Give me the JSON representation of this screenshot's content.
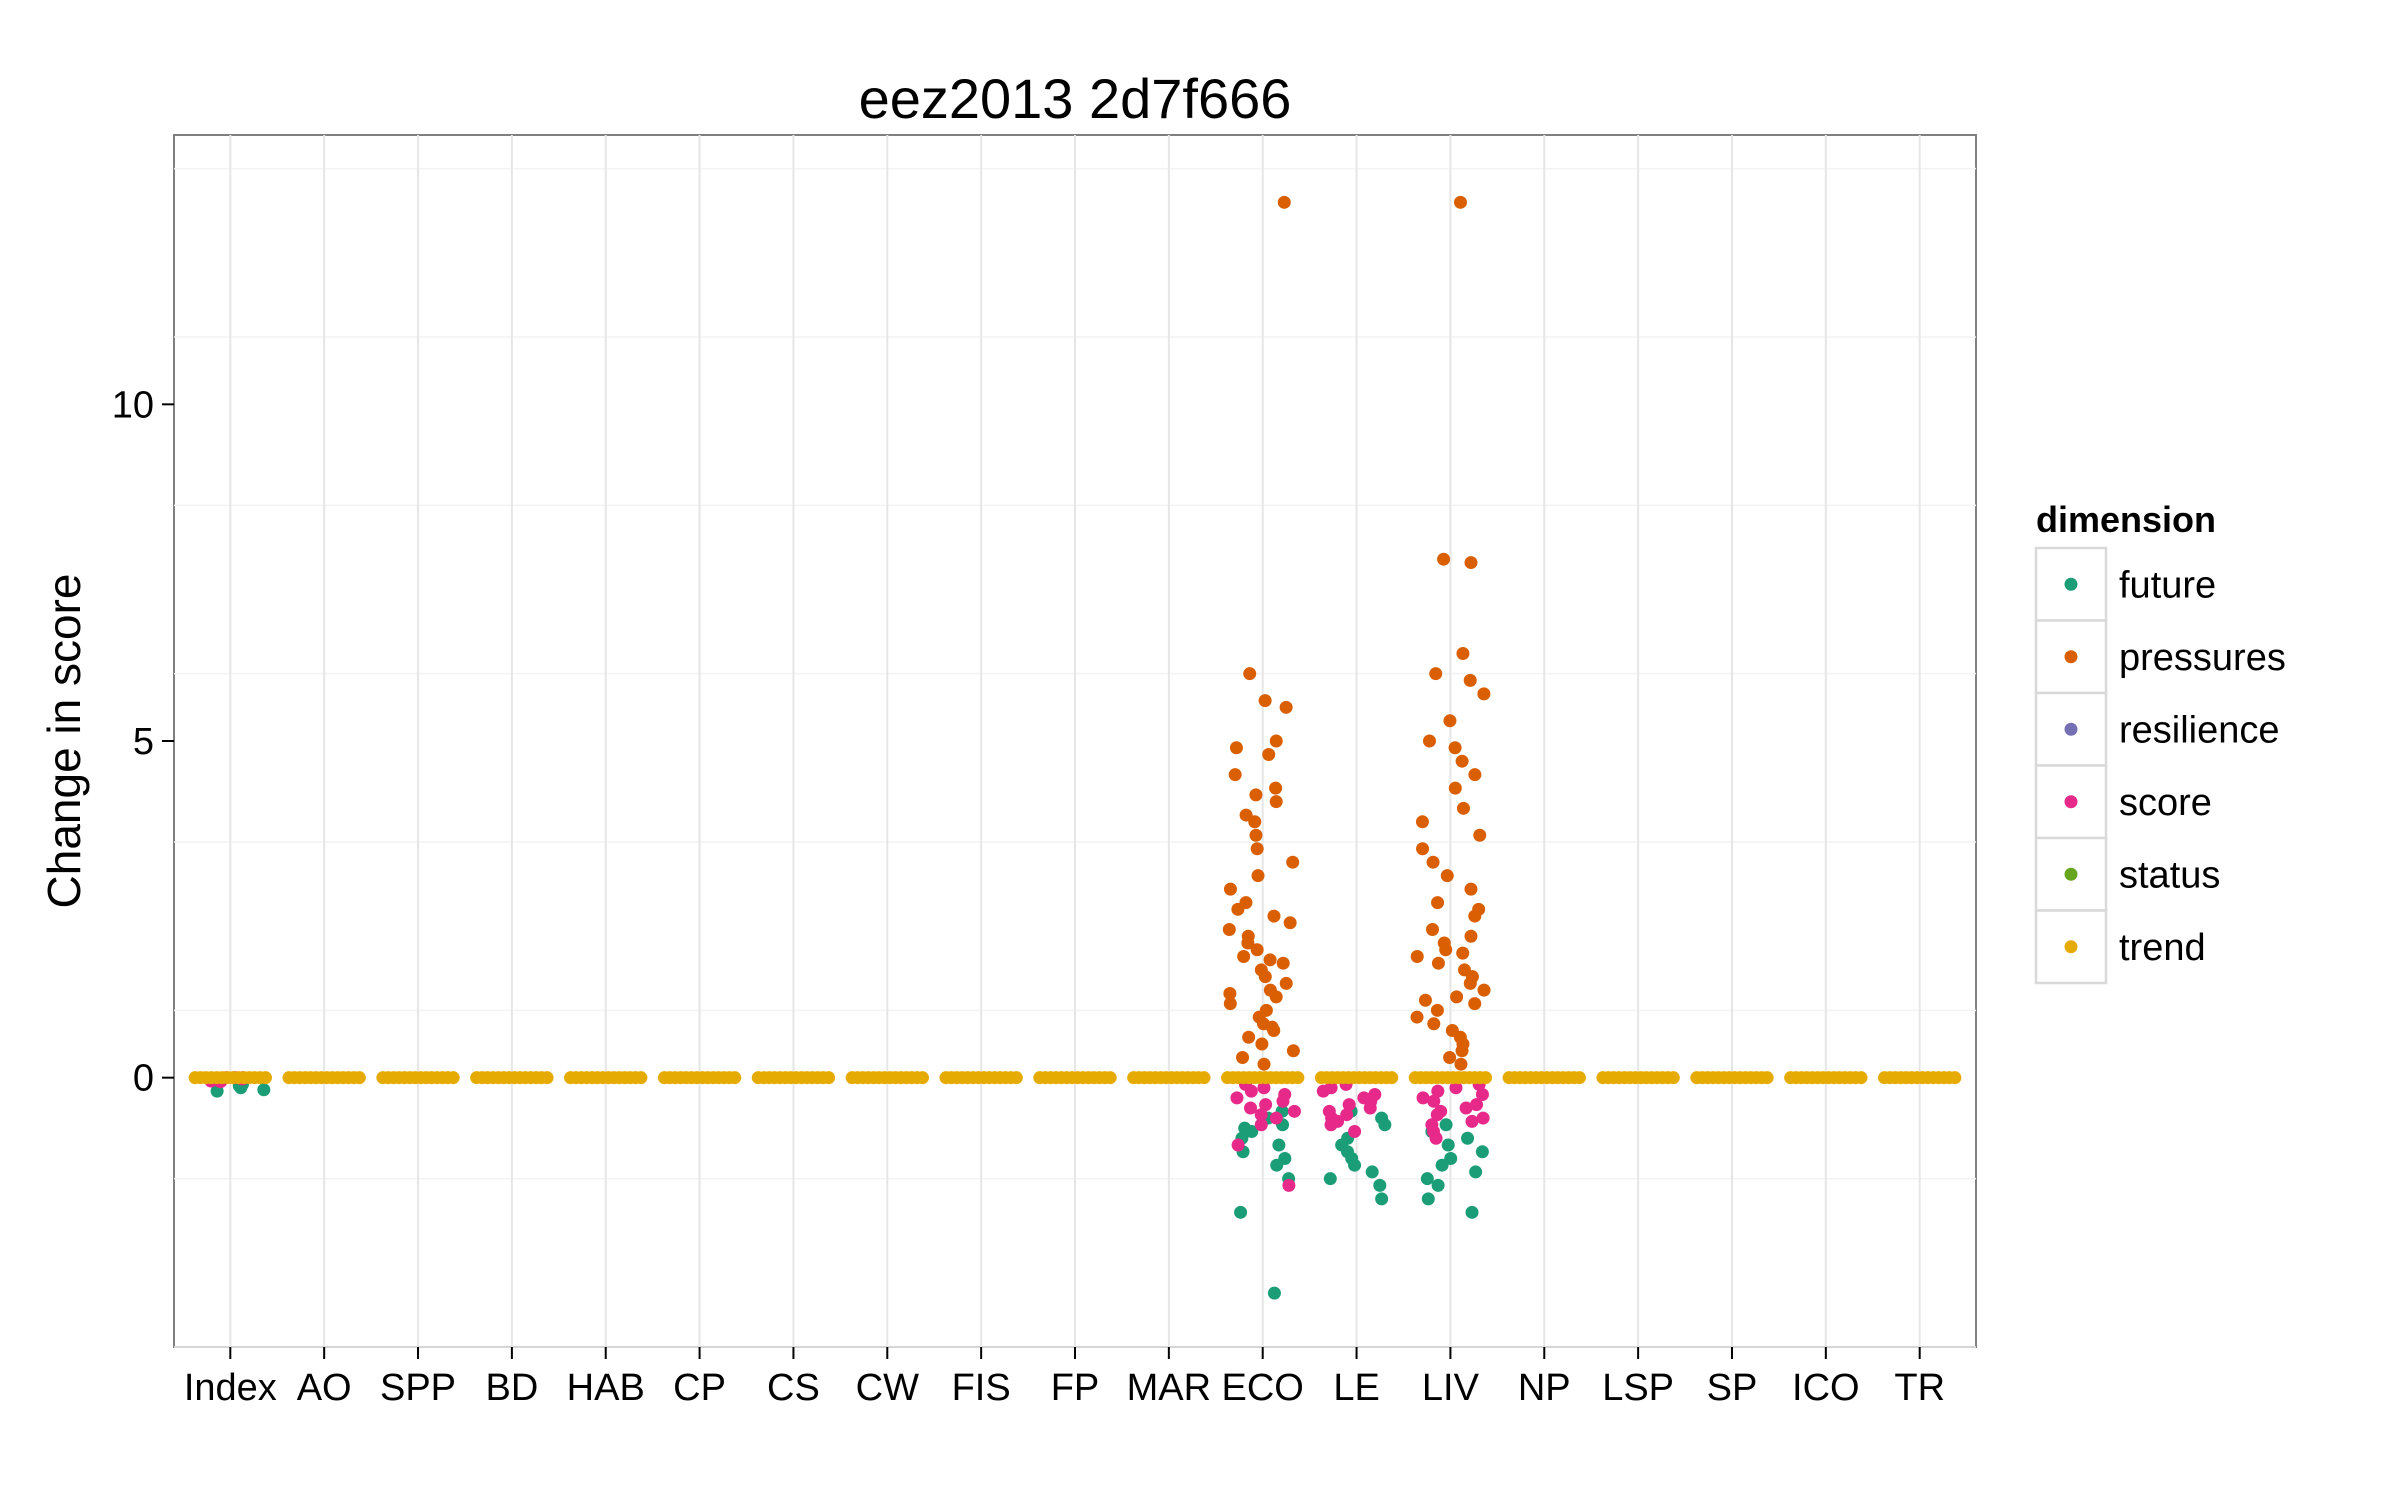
{
  "chart_data": {
    "type": "scatter",
    "title": "eez2013 2d7f666",
    "xlabel": "",
    "ylabel": "Change in score",
    "categories": [
      "Index",
      "AO",
      "SPP",
      "BD",
      "HAB",
      "CP",
      "CS",
      "CW",
      "FIS",
      "FP",
      "MAR",
      "ECO",
      "LE",
      "LIV",
      "NP",
      "LSP",
      "SP",
      "ICO",
      "TR"
    ],
    "ylim": [
      -4,
      14
    ],
    "y_ticks": [
      0,
      5,
      10
    ],
    "y_tick_labels": [
      "0",
      "5",
      "10"
    ],
    "grid": true,
    "jittered": true,
    "legend": {
      "title": "dimension",
      "position": "right",
      "entries": [
        {
          "name": "future",
          "color": "#1b9e77"
        },
        {
          "name": "pressures",
          "color": "#d95f02"
        },
        {
          "name": "resilience",
          "color": "#7570b3"
        },
        {
          "name": "score",
          "color": "#e7298a"
        },
        {
          "name": "status",
          "color": "#66a61e"
        },
        {
          "name": "trend",
          "color": "#e6ab02"
        }
      ]
    },
    "series": [
      {
        "name": "future",
        "color": "#1b9e77",
        "points": [
          {
            "x": "Index",
            "y": -0.15
          },
          {
            "x": "Index",
            "y": -0.2
          },
          {
            "x": "Index",
            "y": -0.12
          },
          {
            "x": "Index",
            "y": -0.18
          },
          {
            "x": "Index",
            "y": -0.1
          },
          {
            "x": "ECO",
            "y": -3.2
          },
          {
            "x": "ECO",
            "y": -2.0
          },
          {
            "x": "ECO",
            "y": -1.5
          },
          {
            "x": "ECO",
            "y": -1.3
          },
          {
            "x": "ECO",
            "y": -1.2
          },
          {
            "x": "ECO",
            "y": -1.0
          },
          {
            "x": "ECO",
            "y": -0.8
          },
          {
            "x": "ECO",
            "y": -0.7
          },
          {
            "x": "ECO",
            "y": -0.9
          },
          {
            "x": "ECO",
            "y": -0.6
          },
          {
            "x": "ECO",
            "y": -0.75
          },
          {
            "x": "ECO",
            "y": -1.1
          },
          {
            "x": "ECO",
            "y": -0.5
          },
          {
            "x": "LE",
            "y": -1.8
          },
          {
            "x": "LE",
            "y": -1.6
          },
          {
            "x": "LE",
            "y": -1.5
          },
          {
            "x": "LE",
            "y": -1.3
          },
          {
            "x": "LE",
            "y": -1.4
          },
          {
            "x": "LE",
            "y": -1.1
          },
          {
            "x": "LE",
            "y": -1.0
          },
          {
            "x": "LE",
            "y": -0.9
          },
          {
            "x": "LE",
            "y": -0.7
          },
          {
            "x": "LE",
            "y": -0.6
          },
          {
            "x": "LE",
            "y": -0.5
          },
          {
            "x": "LE",
            "y": -1.2
          },
          {
            "x": "LIV",
            "y": -2.0
          },
          {
            "x": "LIV",
            "y": -1.8
          },
          {
            "x": "LIV",
            "y": -1.5
          },
          {
            "x": "LIV",
            "y": -1.6
          },
          {
            "x": "LIV",
            "y": -1.3
          },
          {
            "x": "LIV",
            "y": -1.2
          },
          {
            "x": "LIV",
            "y": -1.1
          },
          {
            "x": "LIV",
            "y": -1.0
          },
          {
            "x": "LIV",
            "y": -0.9
          },
          {
            "x": "LIV",
            "y": -0.8
          },
          {
            "x": "LIV",
            "y": -0.7
          },
          {
            "x": "LIV",
            "y": -1.4
          }
        ]
      },
      {
        "name": "pressures",
        "color": "#d95f02",
        "points": [
          {
            "x": "ECO",
            "y": 13.0
          },
          {
            "x": "ECO",
            "y": 6.0
          },
          {
            "x": "ECO",
            "y": 5.6
          },
          {
            "x": "ECO",
            "y": 5.5
          },
          {
            "x": "ECO",
            "y": 5.0
          },
          {
            "x": "ECO",
            "y": 4.9
          },
          {
            "x": "ECO",
            "y": 4.8
          },
          {
            "x": "ECO",
            "y": 4.5
          },
          {
            "x": "ECO",
            "y": 4.3
          },
          {
            "x": "ECO",
            "y": 4.2
          },
          {
            "x": "ECO",
            "y": 4.1
          },
          {
            "x": "ECO",
            "y": 3.9
          },
          {
            "x": "ECO",
            "y": 3.8
          },
          {
            "x": "ECO",
            "y": 3.6
          },
          {
            "x": "ECO",
            "y": 3.4
          },
          {
            "x": "ECO",
            "y": 3.2
          },
          {
            "x": "ECO",
            "y": 3.0
          },
          {
            "x": "ECO",
            "y": 2.8
          },
          {
            "x": "ECO",
            "y": 2.6
          },
          {
            "x": "ECO",
            "y": 2.5
          },
          {
            "x": "ECO",
            "y": 2.4
          },
          {
            "x": "ECO",
            "y": 2.2
          },
          {
            "x": "ECO",
            "y": 2.1
          },
          {
            "x": "ECO",
            "y": 2.0
          },
          {
            "x": "ECO",
            "y": 1.9
          },
          {
            "x": "ECO",
            "y": 1.8
          },
          {
            "x": "ECO",
            "y": 1.7
          },
          {
            "x": "ECO",
            "y": 1.6
          },
          {
            "x": "ECO",
            "y": 1.5
          },
          {
            "x": "ECO",
            "y": 1.4
          },
          {
            "x": "ECO",
            "y": 1.3
          },
          {
            "x": "ECO",
            "y": 1.2
          },
          {
            "x": "ECO",
            "y": 1.1
          },
          {
            "x": "ECO",
            "y": 1.0
          },
          {
            "x": "ECO",
            "y": 0.9
          },
          {
            "x": "ECO",
            "y": 0.8
          },
          {
            "x": "ECO",
            "y": 0.7
          },
          {
            "x": "ECO",
            "y": 0.6
          },
          {
            "x": "ECO",
            "y": 0.5
          },
          {
            "x": "ECO",
            "y": 0.4
          },
          {
            "x": "ECO",
            "y": 0.3
          },
          {
            "x": "ECO",
            "y": 0.2
          },
          {
            "x": "ECO",
            "y": 2.3
          },
          {
            "x": "ECO",
            "y": 1.75
          },
          {
            "x": "ECO",
            "y": 1.25
          },
          {
            "x": "ECO",
            "y": 0.75
          },
          {
            "x": "LIV",
            "y": 13.0
          },
          {
            "x": "LIV",
            "y": 7.7
          },
          {
            "x": "LIV",
            "y": 7.65
          },
          {
            "x": "LIV",
            "y": 6.3
          },
          {
            "x": "LIV",
            "y": 6.0
          },
          {
            "x": "LIV",
            "y": 5.9
          },
          {
            "x": "LIV",
            "y": 5.7
          },
          {
            "x": "LIV",
            "y": 5.3
          },
          {
            "x": "LIV",
            "y": 5.0
          },
          {
            "x": "LIV",
            "y": 4.9
          },
          {
            "x": "LIV",
            "y": 4.7
          },
          {
            "x": "LIV",
            "y": 4.5
          },
          {
            "x": "LIV",
            "y": 4.3
          },
          {
            "x": "LIV",
            "y": 4.0
          },
          {
            "x": "LIV",
            "y": 3.8
          },
          {
            "x": "LIV",
            "y": 3.6
          },
          {
            "x": "LIV",
            "y": 3.4
          },
          {
            "x": "LIV",
            "y": 3.2
          },
          {
            "x": "LIV",
            "y": 3.0
          },
          {
            "x": "LIV",
            "y": 2.8
          },
          {
            "x": "LIV",
            "y": 2.6
          },
          {
            "x": "LIV",
            "y": 2.4
          },
          {
            "x": "LIV",
            "y": 2.2
          },
          {
            "x": "LIV",
            "y": 2.1
          },
          {
            "x": "LIV",
            "y": 2.0
          },
          {
            "x": "LIV",
            "y": 1.9
          },
          {
            "x": "LIV",
            "y": 1.8
          },
          {
            "x": "LIV",
            "y": 1.7
          },
          {
            "x": "LIV",
            "y": 1.6
          },
          {
            "x": "LIV",
            "y": 1.5
          },
          {
            "x": "LIV",
            "y": 1.4
          },
          {
            "x": "LIV",
            "y": 1.3
          },
          {
            "x": "LIV",
            "y": 1.2
          },
          {
            "x": "LIV",
            "y": 1.1
          },
          {
            "x": "LIV",
            "y": 1.0
          },
          {
            "x": "LIV",
            "y": 0.9
          },
          {
            "x": "LIV",
            "y": 0.8
          },
          {
            "x": "LIV",
            "y": 0.7
          },
          {
            "x": "LIV",
            "y": 0.6
          },
          {
            "x": "LIV",
            "y": 0.5
          },
          {
            "x": "LIV",
            "y": 0.4
          },
          {
            "x": "LIV",
            "y": 0.3
          },
          {
            "x": "LIV",
            "y": 0.2
          },
          {
            "x": "LIV",
            "y": 2.5
          },
          {
            "x": "LIV",
            "y": 1.85
          },
          {
            "x": "LIV",
            "y": 1.15
          }
        ]
      },
      {
        "name": "resilience",
        "color": "#7570b3",
        "points": []
      },
      {
        "name": "score",
        "color": "#e7298a",
        "points": [
          {
            "x": "Index",
            "y": 0.0
          },
          {
            "x": "Index",
            "y": -0.05
          },
          {
            "x": "Index",
            "y": -0.02
          },
          {
            "x": "Index",
            "y": 0.0
          },
          {
            "x": "Index",
            "y": -0.04
          },
          {
            "x": "Index",
            "y": 0.0
          },
          {
            "x": "Index",
            "y": -0.06
          },
          {
            "x": "Index",
            "y": -0.03
          },
          {
            "x": "ECO",
            "y": -0.1
          },
          {
            "x": "ECO",
            "y": -0.2
          },
          {
            "x": "ECO",
            "y": -0.3
          },
          {
            "x": "ECO",
            "y": -0.4
          },
          {
            "x": "ECO",
            "y": -0.5
          },
          {
            "x": "ECO",
            "y": -0.6
          },
          {
            "x": "ECO",
            "y": -0.15
          },
          {
            "x": "ECO",
            "y": -0.25
          },
          {
            "x": "ECO",
            "y": -0.35
          },
          {
            "x": "ECO",
            "y": -0.45
          },
          {
            "x": "ECO",
            "y": -0.55
          },
          {
            "x": "ECO",
            "y": -0.7
          },
          {
            "x": "ECO",
            "y": -1.0
          },
          {
            "x": "ECO",
            "y": -1.6
          },
          {
            "x": "LE",
            "y": -0.1
          },
          {
            "x": "LE",
            "y": -0.2
          },
          {
            "x": "LE",
            "y": -0.3
          },
          {
            "x": "LE",
            "y": -0.4
          },
          {
            "x": "LE",
            "y": -0.5
          },
          {
            "x": "LE",
            "y": -0.6
          },
          {
            "x": "LE",
            "y": -0.7
          },
          {
            "x": "LE",
            "y": -0.15
          },
          {
            "x": "LE",
            "y": -0.25
          },
          {
            "x": "LE",
            "y": -0.35
          },
          {
            "x": "LE",
            "y": -0.45
          },
          {
            "x": "LE",
            "y": -0.55
          },
          {
            "x": "LE",
            "y": -0.65
          },
          {
            "x": "LE",
            "y": -0.8
          },
          {
            "x": "LIV",
            "y": -0.1
          },
          {
            "x": "LIV",
            "y": -0.2
          },
          {
            "x": "LIV",
            "y": -0.3
          },
          {
            "x": "LIV",
            "y": -0.4
          },
          {
            "x": "LIV",
            "y": -0.5
          },
          {
            "x": "LIV",
            "y": -0.6
          },
          {
            "x": "LIV",
            "y": -0.7
          },
          {
            "x": "LIV",
            "y": -0.8
          },
          {
            "x": "LIV",
            "y": -0.15
          },
          {
            "x": "LIV",
            "y": -0.25
          },
          {
            "x": "LIV",
            "y": -0.35
          },
          {
            "x": "LIV",
            "y": -0.45
          },
          {
            "x": "LIV",
            "y": -0.55
          },
          {
            "x": "LIV",
            "y": -0.65
          },
          {
            "x": "LIV",
            "y": -0.9
          }
        ]
      },
      {
        "name": "status",
        "color": "#66a61e",
        "points": []
      },
      {
        "name": "trend",
        "color": "#e6ab02",
        "points": [
          {
            "x": "Index",
            "y": 0.0
          },
          {
            "x": "AO",
            "y": 0.0
          },
          {
            "x": "SPP",
            "y": 0.0
          },
          {
            "x": "BD",
            "y": 0.0
          },
          {
            "x": "HAB",
            "y": 0.0
          },
          {
            "x": "CP",
            "y": 0.0
          },
          {
            "x": "CS",
            "y": 0.0
          },
          {
            "x": "CW",
            "y": 0.0
          },
          {
            "x": "FIS",
            "y": 0.0
          },
          {
            "x": "FP",
            "y": 0.0
          },
          {
            "x": "MAR",
            "y": 0.0
          },
          {
            "x": "ECO",
            "y": 0.0
          },
          {
            "x": "LE",
            "y": 0.0
          },
          {
            "x": "LIV",
            "y": 0.0
          },
          {
            "x": "NP",
            "y": 0.0
          },
          {
            "x": "LSP",
            "y": 0.0
          },
          {
            "x": "SP",
            "y": 0.0
          },
          {
            "x": "ICO",
            "y": 0.0
          },
          {
            "x": "TR",
            "y": 0.0
          }
        ]
      }
    ]
  }
}
